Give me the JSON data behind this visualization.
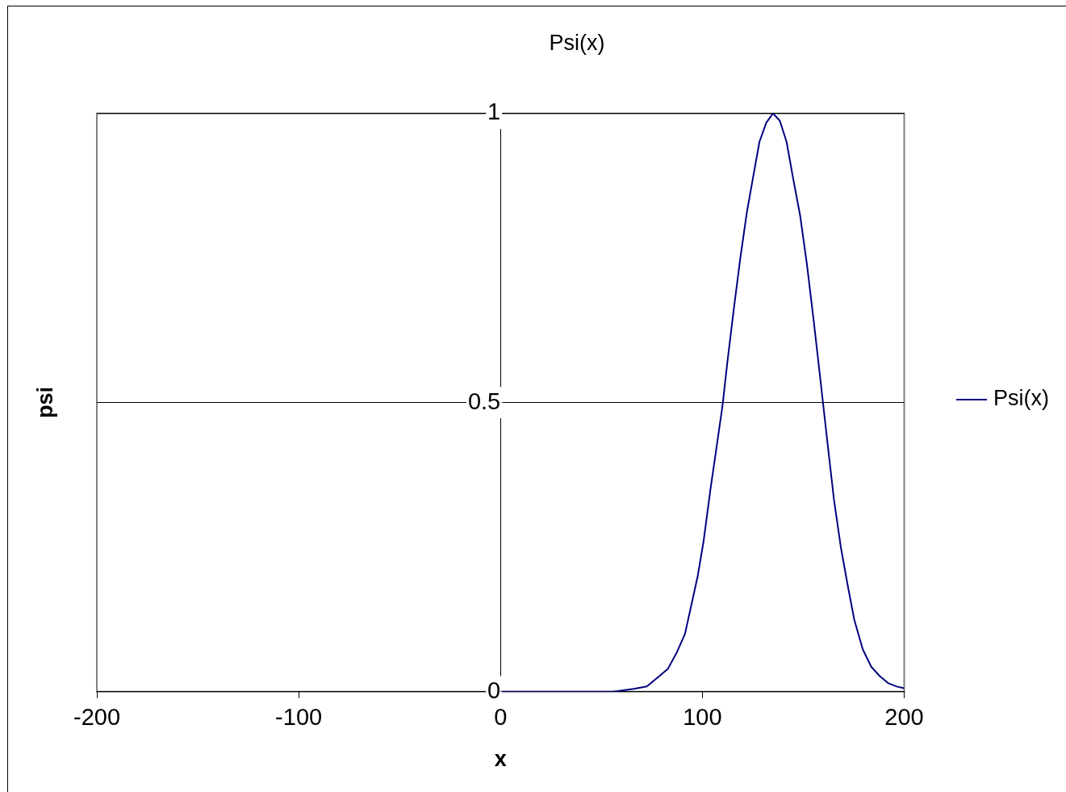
{
  "chart_data": {
    "type": "line",
    "title": "Psi(x)",
    "xlabel": "x",
    "ylabel": "psi",
    "xlim": [
      -200,
      200
    ],
    "xticks": [
      -200,
      -100,
      0,
      100,
      200
    ],
    "ylim": [
      0,
      1
    ],
    "yticks": [
      0,
      0.5,
      1
    ],
    "grid": "y",
    "legend": "right",
    "marker": "none",
    "line_style": "solid",
    "series": [
      {
        "name": "Psi(x)",
        "color": "#000080",
        "x": [
          0,
          20,
          40,
          55,
          58,
          66,
          72.5,
          79,
          83,
          87.2,
          91.4,
          94.8,
          97.7,
          100.6,
          104,
          106.5,
          110,
          112.4,
          115.7,
          118.7,
          122,
          125,
          128.3,
          131.7,
          135,
          138.4,
          141.7,
          145,
          148.4,
          151.8,
          155.1,
          158.5,
          161.8,
          165.2,
          168.6,
          172,
          175.3,
          179.5,
          183.7,
          187.9,
          192,
          196.3,
          200
        ],
        "values": [
          0,
          0,
          0,
          0,
          0.001,
          0.005,
          0.009,
          0.028,
          0.04,
          0.067,
          0.1,
          0.154,
          0.2,
          0.26,
          0.35,
          0.41,
          0.495,
          0.57,
          0.665,
          0.747,
          0.828,
          0.887,
          0.951,
          0.984,
          1,
          0.987,
          0.951,
          0.887,
          0.824,
          0.739,
          0.643,
          0.539,
          0.436,
          0.332,
          0.25,
          0.184,
          0.124,
          0.073,
          0.043,
          0.027,
          0.015,
          0.009,
          0.006
        ]
      }
    ]
  }
}
